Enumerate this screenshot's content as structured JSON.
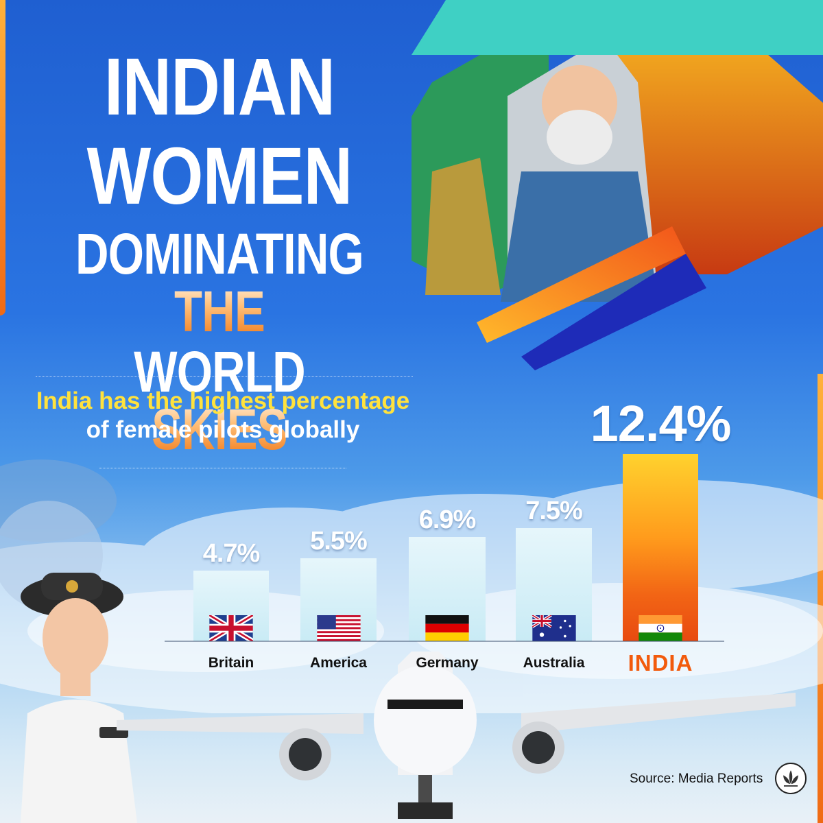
{
  "headline": {
    "line1": "INDIAN",
    "line2": "WOMEN",
    "line3": "DOMINATING THE",
    "line4": "WORLD SKIES"
  },
  "subtitle": {
    "line1": "India has the highest percentage",
    "line2": "of female pilots globally"
  },
  "source": "Source: Media Reports",
  "colors": {
    "sky_top": "#1f5fd1",
    "bar_light": "#d6f0f8",
    "india_bar_top": "#ffd22e",
    "india_bar_bottom": "#e84a10",
    "india_label": "#f25a0c",
    "subtitle_accent": "#ffe23d"
  },
  "icons": [
    "union-jack-flag-icon",
    "us-flag-icon",
    "german-flag-icon",
    "australian-flag-icon",
    "indian-flag-icon",
    "lotus-logo-icon"
  ],
  "chart_data": {
    "type": "bar",
    "categories": [
      "Britain",
      "America",
      "Germany",
      "Australia",
      "INDIA"
    ],
    "values": [
      4.7,
      5.5,
      6.9,
      7.5,
      12.4
    ],
    "value_labels": [
      "4.7%",
      "5.5%",
      "6.9%",
      "7.5%",
      "12.4%"
    ],
    "title": "India has the highest percentage of female pilots globally",
    "xlabel": "",
    "ylabel": "",
    "ylim": [
      0,
      12.4
    ],
    "grid": false,
    "legend": "none",
    "highlight": "INDIA"
  }
}
